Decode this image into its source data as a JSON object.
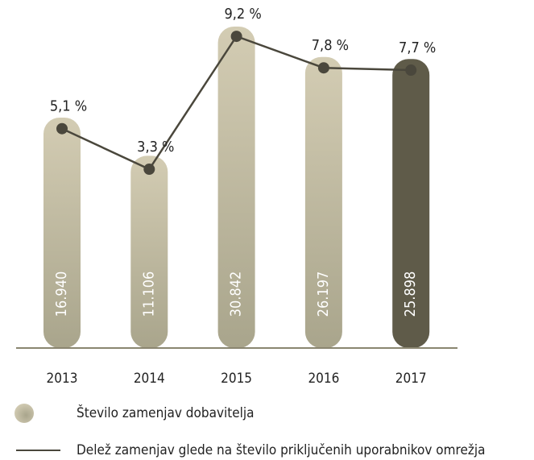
{
  "chart_data": {
    "type": "bar-line",
    "categories": [
      "2013",
      "2014",
      "2015",
      "2016",
      "2017"
    ],
    "series": [
      {
        "name": "Število zamenjav dobavitelja",
        "type": "bar",
        "colors": [
          "#c4bea4",
          "#c4bea4",
          "#c4bea4",
          "#c4bea4",
          "#5f5b49"
        ],
        "color": "#c4bea4",
        "values": [
          16940,
          11106,
          30842,
          26197,
          25898
        ],
        "value_labels": [
          "16.940",
          "11.106",
          "30.842",
          "26.197",
          "25.898"
        ]
      },
      {
        "name": "Delež zamenjav glede na število priključenih uporabnikov omrežja",
        "type": "line",
        "axis": "y2",
        "color": "#4a473c",
        "values": [
          5.1,
          3.3,
          9.2,
          7.8,
          7.7
        ],
        "value_labels": [
          "5,1 %",
          "3,3 %",
          "9,2 %",
          "7,8 %",
          "7,7 %"
        ]
      }
    ],
    "ylim": [
      -16770,
      32690
    ],
    "y2lim": [
      -4.64,
      9.74
    ]
  }
}
